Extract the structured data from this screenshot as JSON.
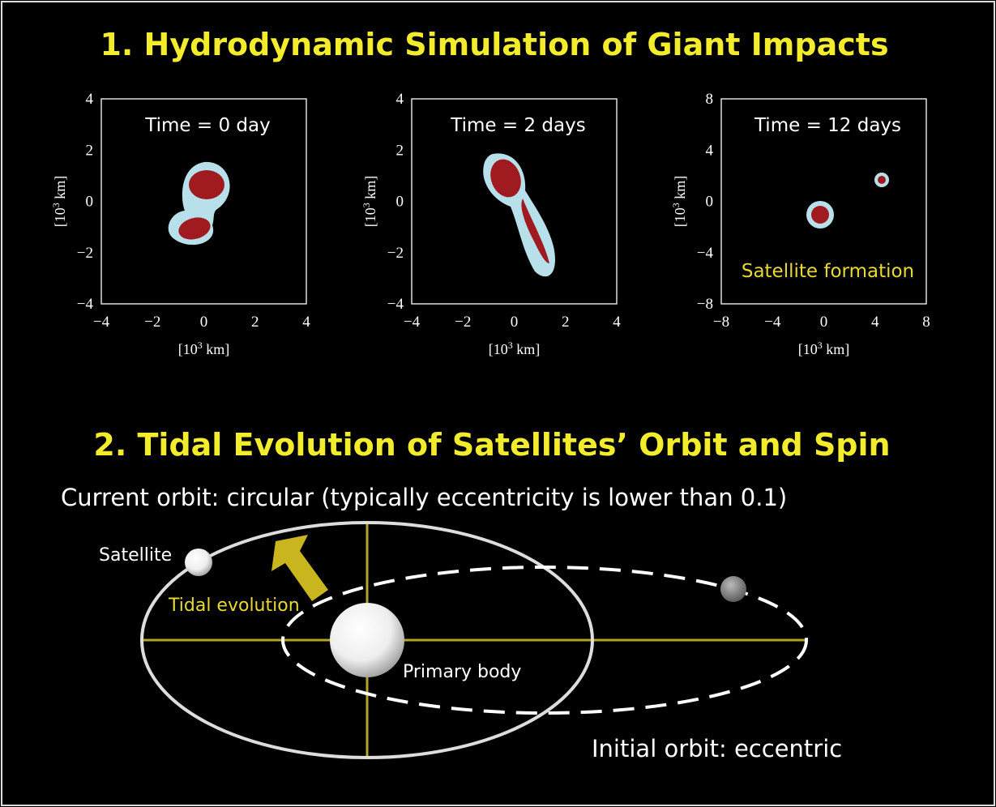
{
  "section1": {
    "title": "1. Hydrodynamic Simulation of Giant Impacts",
    "axis_label": {
      "base": "[10",
      "exp": "3",
      "unit": " km]"
    },
    "panels": [
      {
        "time": "Time = 0 day",
        "yticks": [
          "4",
          "2",
          "0",
          "−2",
          "−4"
        ],
        "xticks": [
          "−4",
          "−2",
          "0",
          "2",
          "4"
        ]
      },
      {
        "time": "Time = 2 days",
        "yticks": [
          "4",
          "2",
          "0",
          "−2",
          "−4"
        ],
        "xticks": [
          "−4",
          "−2",
          "0",
          "2",
          "4"
        ]
      },
      {
        "time": "Time = 12 days",
        "yticks": [
          "8",
          "4",
          "0",
          "−4",
          "−8"
        ],
        "xticks": [
          "−8",
          "−4",
          "0",
          "4",
          "8"
        ],
        "annotation": "Satellite formation"
      }
    ]
  },
  "section2": {
    "title": "2. Tidal Evolution of Satellites’ Orbit and Spin",
    "subtitle": "Current orbit: circular (typically eccentricity  is lower than 0.1)",
    "labels": {
      "satellite": "Satellite",
      "tidal": "Tidal evolution",
      "primary": "Primary body",
      "initial": "Initial orbit: eccentric"
    }
  }
}
